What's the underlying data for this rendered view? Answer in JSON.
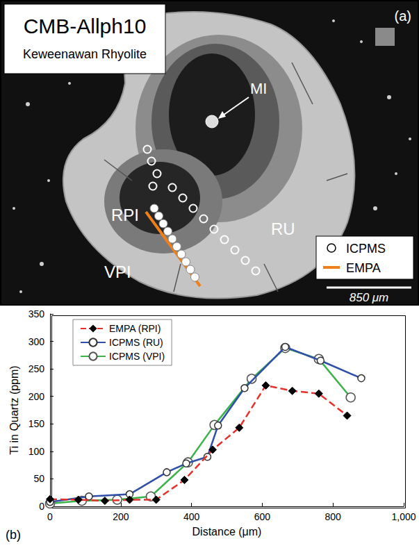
{
  "image_panel": {
    "panel_label": "(a)",
    "title": "CMB-Allph10",
    "subtitle": "Keweenawan Rhyolite",
    "labels": [
      "MI",
      "RPI",
      "RU",
      "VPI"
    ],
    "legend": [
      {
        "label": "ICPMS",
        "marker": "circle"
      },
      {
        "label": "EMPA",
        "marker": "line",
        "color": "#f07f1a"
      }
    ],
    "scale_bar": "850 μm"
  },
  "chart_data": {
    "type": "line",
    "annotations": [
      "(b)"
    ],
    "x_label": "Distance (μm)",
    "y_label": "Ti in Quartz (ppm)",
    "xlim": [
      0,
      1000
    ],
    "xticks": [
      0,
      200,
      400,
      600,
      800,
      1000
    ],
    "ylim": [
      0,
      350
    ],
    "yticks": [
      0,
      50,
      100,
      150,
      200,
      250,
      300,
      350
    ],
    "grid": false,
    "legend": "upper left",
    "series": [
      {
        "name": "EMPA (RPI)",
        "color": "#e8302a",
        "marker": "diamond",
        "line_style": "dashed",
        "x": [
          0,
          80,
          155,
          225,
          300,
          380,
          460,
          535,
          610,
          685,
          760,
          840
        ],
        "values": [
          13,
          12,
          10,
          12,
          12,
          48,
          103,
          143,
          220,
          210,
          205,
          165
        ]
      },
      {
        "name": "ICPMS (RU)",
        "color": "#2f4fa8",
        "marker": "circle",
        "line_style": "solid",
        "x": [
          0,
          110,
          225,
          330,
          385,
          445,
          475,
          550,
          665,
          765,
          880
        ],
        "values": [
          8,
          18,
          22,
          62,
          78,
          90,
          147,
          215,
          290,
          265,
          233
        ]
      },
      {
        "name": "ICPMS (VPI)",
        "color": "#3cb34a",
        "marker": "circle",
        "line_style": "solid",
        "x": [
          0,
          90,
          190,
          285,
          390,
          465,
          570,
          665,
          760,
          850
        ],
        "values": [
          5,
          10,
          12,
          18,
          80,
          148,
          232,
          288,
          268,
          198
        ]
      }
    ]
  }
}
